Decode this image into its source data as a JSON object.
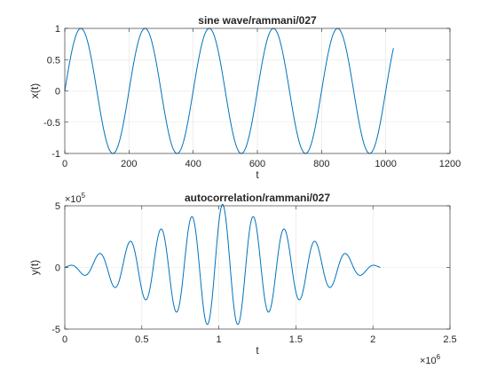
{
  "chart_data": [
    {
      "type": "line",
      "title": "sine wave/rammani/027",
      "xlabel": "t",
      "ylabel": "x(t)",
      "xlim": [
        0,
        1200
      ],
      "ylim": [
        -1,
        1
      ],
      "xticks": [
        "0",
        "200",
        "400",
        "600",
        "800",
        "1000",
        "1200"
      ],
      "yticks": [
        "-1",
        "-0.5",
        "0",
        "0.5",
        "1"
      ],
      "grid": true,
      "color": "#0072BD",
      "signal": {
        "function": "sin",
        "period": 200,
        "amplitude": 1,
        "x_start": 0,
        "x_end": 1024
      },
      "series": [
        {
          "x": [
            0,
            50,
            100,
            150,
            200,
            250,
            300,
            350,
            400,
            450,
            500,
            550,
            600,
            650,
            700,
            750,
            800,
            850,
            900,
            950,
            1000,
            1024
          ],
          "values": [
            0,
            1,
            0,
            -1,
            0,
            1,
            0,
            -1,
            0,
            1,
            0,
            -1,
            0,
            1,
            0,
            -1,
            0,
            1,
            0,
            -1,
            0,
            0.68
          ]
        }
      ]
    },
    {
      "type": "line",
      "title": "autocorrelation/rammani/027",
      "xlabel": "t",
      "ylabel": "y(t)",
      "xlim": [
        0,
        2500000
      ],
      "ylim": [
        -500000,
        500000
      ],
      "xticks": [
        "0",
        "0.5",
        "1",
        "1.5",
        "2",
        "2.5"
      ],
      "yticks": [
        "-5",
        "0",
        "5"
      ],
      "x_exponent_label": "×10",
      "x_exponent": "6",
      "y_exponent_label": "×10",
      "y_exponent": "5",
      "grid": true,
      "color": "#0072BD",
      "signal": {
        "function": "autocorrelation of sine",
        "center": 1024000,
        "peak": 512000,
        "half_width": 1024000,
        "period": 200000
      },
      "series": [
        {
          "x": [
            0,
            224000,
            424000,
            624000,
            824000,
            1024000,
            1224000,
            1424000,
            1624000,
            1824000,
            2048000
          ],
          "values": [
            0,
            112000,
            212000,
            312000,
            412000,
            512000,
            412000,
            312000,
            212000,
            112000,
            0
          ]
        }
      ]
    }
  ]
}
